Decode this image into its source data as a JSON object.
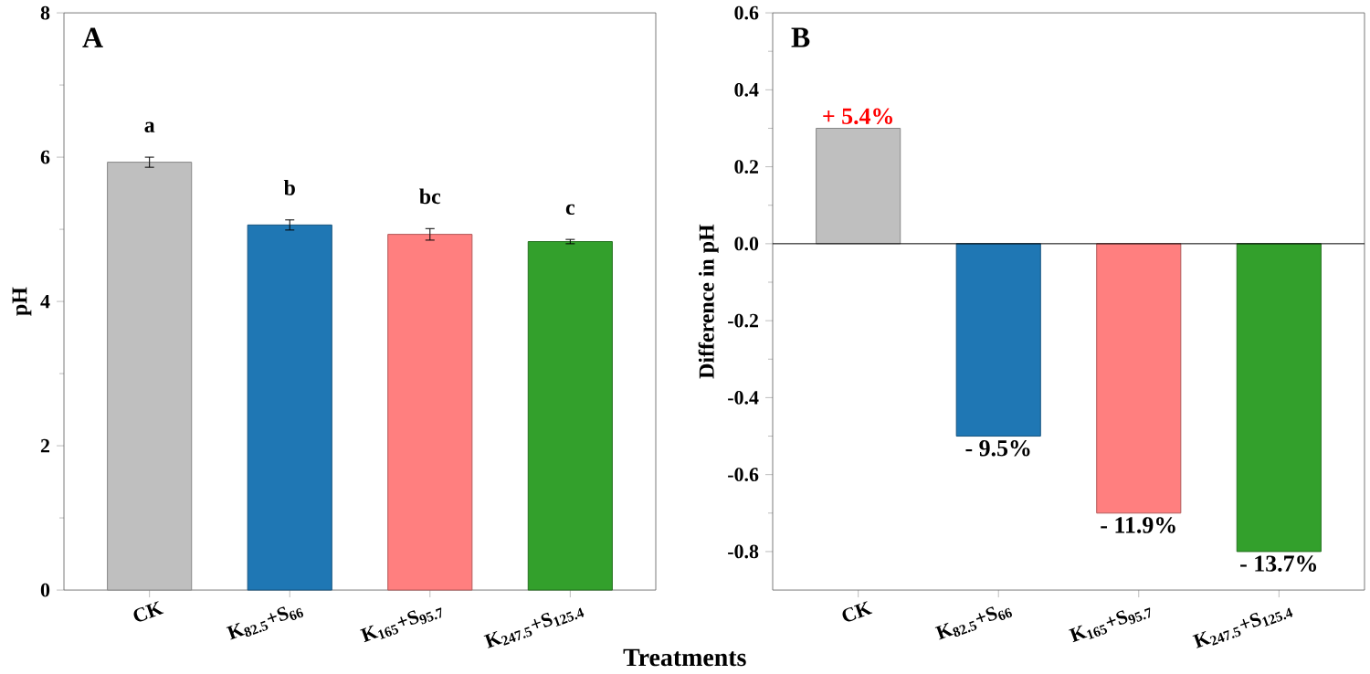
{
  "chart_data": [
    {
      "type": "bar",
      "title": "A",
      "ylabel": "pH",
      "xlabel": "Treatments",
      "categories": [
        "CK",
        "K$_{82.5}$+S$_{66}$",
        "K$_{165}$+S$_{95.7}$",
        "K$_{247.5}$+S$_{125.4}$"
      ],
      "values": [
        5.93,
        5.06,
        4.93,
        4.83
      ],
      "errors": [
        0.07,
        0.07,
        0.08,
        0.03
      ],
      "colors": [
        "#bfbfbf",
        "#1f77b4",
        "#ff7f7f",
        "#33a02c"
      ],
      "ylim": [
        0,
        8
      ],
      "yticks": [
        0,
        2,
        4,
        6,
        8
      ],
      "annotations": [
        "a",
        "b",
        "bc",
        "c"
      ]
    },
    {
      "type": "bar",
      "title": "B",
      "ylabel": "Difference in pH",
      "categories": [
        "CK",
        "K$_{82.5}$+S$_{66}$",
        "K$_{165}$+S$_{95.7}$",
        "K$_{247.5}$+S$_{125.4}$"
      ],
      "values": [
        0.3,
        -0.5,
        -0.7,
        -0.8
      ],
      "colors": [
        "#bfbfbf",
        "#1f77b4",
        "#ff7f7f",
        "#33a02c"
      ],
      "ylim": [
        -0.9,
        0.6
      ],
      "yticks": [
        {
          "value": -0.8,
          "label": "-0.8"
        },
        {
          "value": -0.6,
          "label": "-0.6"
        },
        {
          "value": -0.4,
          "label": "-0.4"
        },
        {
          "value": -0.2,
          "label": "-0.2"
        },
        {
          "value": 0,
          "label": "0.0"
        },
        {
          "value": 0.2,
          "label": "0.2"
        },
        {
          "value": 0.4,
          "label": "0.4"
        },
        {
          "value": 0.6,
          "label": "0.6"
        }
      ],
      "annotations": [
        {
          "text": "+ 5.4%",
          "x": "CK",
          "y": 0.3
        },
        {
          "text": "- 9.5%",
          "x": "K$_{82.5}$+S$_{66}$",
          "y": -0.5
        },
        {
          "text": "- 11.9%",
          "x": "K$_{165}$+S$_{95.7}$",
          "y": -0.7
        },
        {
          "text": "- 13.7%",
          "x": "K$_{247.5}$+S$_{125.4}$",
          "y": -0.8
        }
      ],
      "ref_lines": [
        {
          "axis": "y",
          "value": 0
        }
      ]
    }
  ]
}
